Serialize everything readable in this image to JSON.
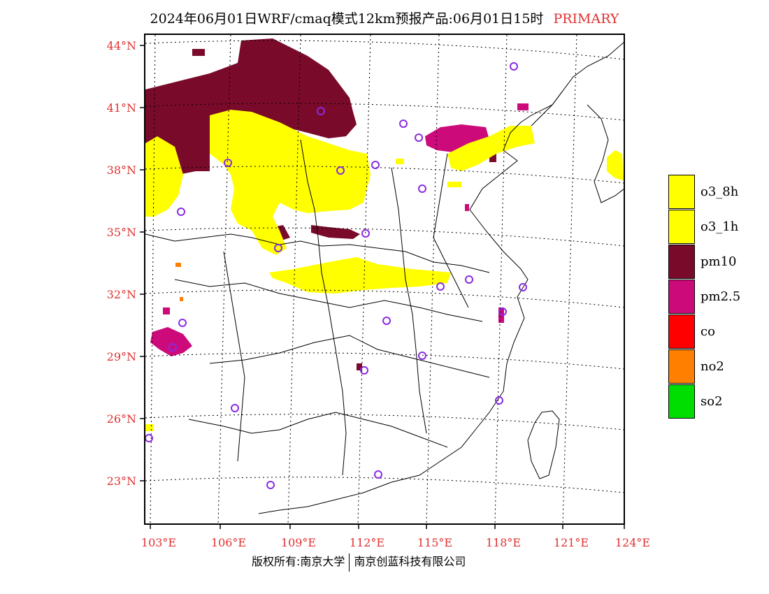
{
  "title": {
    "main": "2024年06月01日WRF/cmaq模式12km预报产品:06月01日15时",
    "tag": "PRIMARY"
  },
  "axes": {
    "lat_labels": [
      "44°N",
      "41°N",
      "38°N",
      "35°N",
      "32°N",
      "29°N",
      "26°N",
      "23°N"
    ],
    "lon_labels": [
      "103°E",
      "106°E",
      "109°E",
      "112°E",
      "115°E",
      "118°E",
      "121°E",
      "124°E"
    ],
    "label_color": "#e03030"
  },
  "legend": [
    {
      "label": "o3_8h",
      "color": "#ffff00"
    },
    {
      "label": "o3_1h",
      "color": "#ffff00"
    },
    {
      "label": "pm10",
      "color": "#7a0a2a"
    },
    {
      "label": "pm2.5",
      "color": "#cc0a7a"
    },
    {
      "label": "co",
      "color": "#ff0000"
    },
    {
      "label": "no2",
      "color": "#ff8000"
    },
    {
      "label": "so2",
      "color": "#00dd00"
    }
  ],
  "colors": {
    "o3": "#ffff00",
    "pm10": "#7a0a2a",
    "pm25": "#cc0a7a",
    "no2": "#ff8000",
    "station": "#8a2be2"
  },
  "footer": {
    "left": "版权所有:南京大学",
    "right": "南京创蓝科技有限公司"
  }
}
